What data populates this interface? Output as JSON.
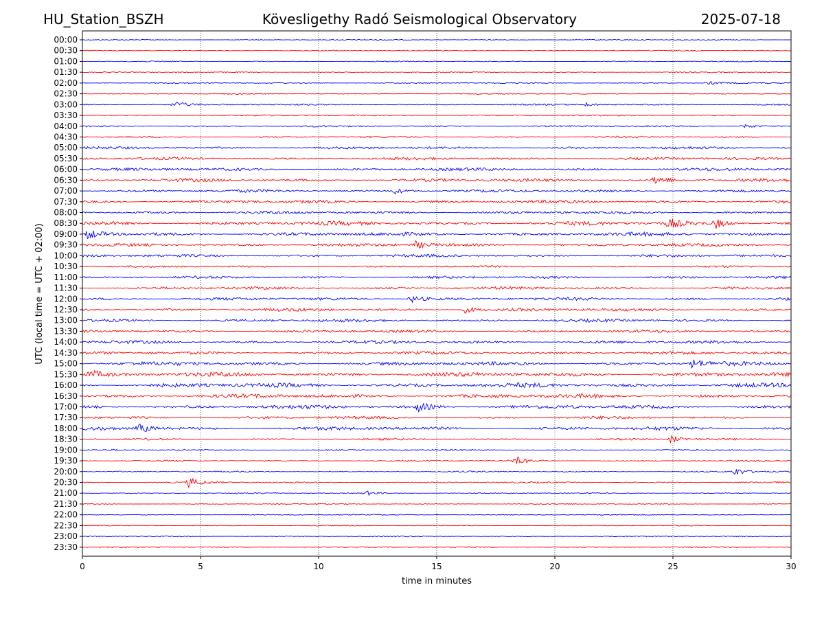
{
  "header": {
    "station": "HU_Station_BSZH",
    "observatory": "Kövesligethy Radó Seismological Observatory",
    "date": "2025-07-18"
  },
  "chart_data": {
    "type": "line",
    "title": "Kövesligethy Radó Seismological Observatory",
    "xlabel": "time in minutes",
    "ylabel": "UTC (local time = UTC + 02:00)",
    "xlim": [
      0,
      30
    ],
    "xticks": [
      0,
      5,
      10,
      15,
      20,
      25,
      30
    ],
    "vertical_grid": [
      5,
      10,
      15,
      20,
      25
    ],
    "trace_colors": [
      "#0000ff",
      "#ff0000"
    ],
    "rows": [
      "00:00",
      "00:30",
      "01:00",
      "01:30",
      "02:00",
      "02:30",
      "03:00",
      "03:30",
      "04:00",
      "04:30",
      "05:00",
      "05:30",
      "06:00",
      "06:30",
      "07:00",
      "07:30",
      "08:00",
      "08:30",
      "09:00",
      "09:30",
      "10:00",
      "10:30",
      "11:00",
      "11:30",
      "12:00",
      "12:30",
      "13:00",
      "13:30",
      "14:00",
      "14:30",
      "15:00",
      "15:30",
      "16:00",
      "16:30",
      "17:00",
      "17:30",
      "18:00",
      "18:30",
      "19:00",
      "19:30",
      "20:00",
      "20:30",
      "21:00",
      "21:30",
      "22:00",
      "22:30",
      "23:00",
      "23:30"
    ],
    "noise_level": [
      0.8,
      0.8,
      0.8,
      0.9,
      1,
      1,
      1.2,
      1.1,
      1.3,
      1.4,
      2,
      2.2,
      2.5,
      2.6,
      2.3,
      2.6,
      2.4,
      3.2,
      3,
      2.5,
      2.2,
      1.6,
      2,
      2.2,
      2.4,
      2.6,
      2.4,
      2.3,
      2.5,
      2.4,
      3,
      3.6,
      3.6,
      3.2,
      3,
      2.3,
      2.8,
      1.6,
      1.2,
      1.2,
      1.1,
      1.2,
      1,
      0.9,
      0.9,
      0.8,
      0.8,
      0.8
    ],
    "events": [
      {
        "row": "02:00",
        "t": 26.5,
        "amp": 3
      },
      {
        "row": "03:00",
        "t": 3.9,
        "amp": 4.5
      },
      {
        "row": "03:00",
        "t": 21.3,
        "amp": 2.5
      },
      {
        "row": "04:00",
        "t": 28,
        "amp": 3.5
      },
      {
        "row": "06:30",
        "t": 24.2,
        "amp": 6
      },
      {
        "row": "07:00",
        "t": 13.2,
        "amp": 4
      },
      {
        "row": "08:30",
        "t": 24.8,
        "amp": 7
      },
      {
        "row": "08:30",
        "t": 26.8,
        "amp": 7
      },
      {
        "row": "09:00",
        "t": 0.2,
        "amp": 7
      },
      {
        "row": "09:30",
        "t": 14.1,
        "amp": 5
      },
      {
        "row": "12:00",
        "t": 13.9,
        "amp": 6
      },
      {
        "row": "12:30",
        "t": 16.2,
        "amp": 5
      },
      {
        "row": "15:00",
        "t": 25.8,
        "amp": 7
      },
      {
        "row": "15:30",
        "t": 0.3,
        "amp": 6
      },
      {
        "row": "17:00",
        "t": 14.2,
        "amp": 7
      },
      {
        "row": "18:00",
        "t": 2.4,
        "amp": 7
      },
      {
        "row": "18:30",
        "t": 24.9,
        "amp": 5
      },
      {
        "row": "19:30",
        "t": 18.3,
        "amp": 6
      },
      {
        "row": "20:00",
        "t": 27.6,
        "amp": 6
      },
      {
        "row": "20:30",
        "t": 4.5,
        "amp": 7
      },
      {
        "row": "21:00",
        "t": 12,
        "amp": 3
      }
    ]
  }
}
